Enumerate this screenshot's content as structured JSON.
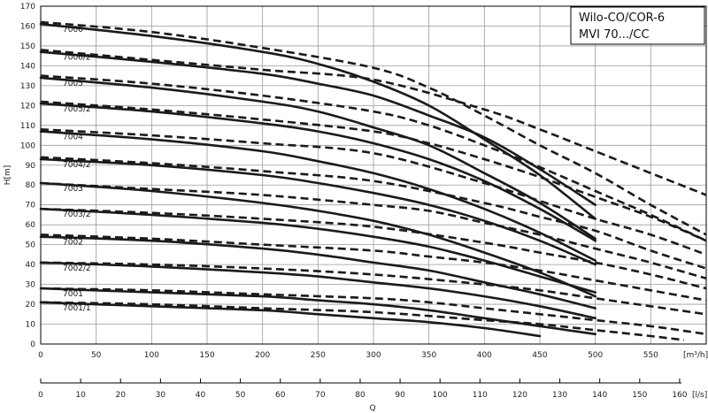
{
  "chart_data": {
    "type": "line",
    "title": [
      "Wilo-CO/COR-6",
      "MVI 70.../CC"
    ],
    "ylabel": "H[m]",
    "xlabel": "Q",
    "x_unit_top": "[m³/h]",
    "x_unit_bottom": "[l/s]",
    "xlim": [
      0,
      600
    ],
    "ylim": [
      0,
      170
    ],
    "x_ticks": [
      0,
      50,
      100,
      150,
      200,
      250,
      300,
      350,
      400,
      450,
      500,
      550
    ],
    "y_ticks": [
      0,
      10,
      20,
      30,
      40,
      50,
      60,
      70,
      80,
      90,
      100,
      110,
      120,
      130,
      140,
      150,
      160,
      170
    ],
    "x2_lim": [
      0,
      166.67
    ],
    "x2_ticks": [
      0,
      10,
      20,
      30,
      40,
      50,
      60,
      70,
      80,
      90,
      100,
      110,
      120,
      130,
      140,
      150,
      160
    ],
    "grid": true,
    "pumps": [
      {
        "label": "7006",
        "solid": [
          [
            0,
            161
          ],
          [
            100,
            155
          ],
          [
            200,
            147
          ],
          [
            250,
            141
          ],
          [
            300,
            132
          ],
          [
            350,
            120
          ],
          [
            400,
            103
          ],
          [
            450,
            85
          ],
          [
            500,
            63
          ]
        ],
        "dashed": [
          [
            0,
            162
          ],
          [
            100,
            157
          ],
          [
            200,
            149
          ],
          [
            300,
            139
          ],
          [
            350,
            129
          ],
          [
            400,
            115
          ],
          [
            450,
            100
          ],
          [
            500,
            86
          ],
          [
            550,
            70
          ],
          [
            600,
            55
          ]
        ]
      },
      {
        "label": "7006/2",
        "solid": [
          [
            0,
            147
          ],
          [
            100,
            142
          ],
          [
            200,
            136
          ],
          [
            250,
            131
          ],
          [
            300,
            125
          ],
          [
            350,
            115
          ],
          [
            400,
            104
          ],
          [
            450,
            88
          ],
          [
            500,
            70
          ]
        ],
        "dashed": [
          [
            0,
            148
          ],
          [
            100,
            143
          ],
          [
            200,
            138
          ],
          [
            300,
            133
          ],
          [
            400,
            118
          ],
          [
            450,
            108
          ],
          [
            500,
            97
          ],
          [
            550,
            86
          ],
          [
            600,
            75
          ]
        ]
      },
      {
        "label": "7005",
        "solid": [
          [
            0,
            134
          ],
          [
            100,
            129
          ],
          [
            200,
            122
          ],
          [
            250,
            117
          ],
          [
            300,
            109
          ],
          [
            350,
            100
          ],
          [
            400,
            86
          ],
          [
            450,
            71
          ],
          [
            500,
            53
          ]
        ],
        "dashed": [
          [
            0,
            135
          ],
          [
            100,
            131
          ],
          [
            200,
            125
          ],
          [
            300,
            117
          ],
          [
            350,
            110
          ],
          [
            400,
            100
          ],
          [
            450,
            89
          ],
          [
            500,
            77
          ],
          [
            550,
            65
          ],
          [
            600,
            52
          ]
        ]
      },
      {
        "label": "7005/2",
        "solid": [
          [
            0,
            121
          ],
          [
            100,
            117
          ],
          [
            200,
            111
          ],
          [
            250,
            107
          ],
          [
            300,
            101
          ],
          [
            350,
            93
          ],
          [
            400,
            82
          ],
          [
            450,
            68
          ],
          [
            500,
            52
          ]
        ],
        "dashed": [
          [
            0,
            122
          ],
          [
            100,
            118
          ],
          [
            200,
            113
          ],
          [
            300,
            107
          ],
          [
            350,
            101
          ],
          [
            400,
            93
          ],
          [
            450,
            84
          ],
          [
            500,
            74
          ],
          [
            550,
            64
          ],
          [
            600,
            52
          ]
        ]
      },
      {
        "label": "7004",
        "solid": [
          [
            0,
            107
          ],
          [
            100,
            103
          ],
          [
            200,
            97
          ],
          [
            250,
            92
          ],
          [
            300,
            86
          ],
          [
            350,
            78
          ],
          [
            400,
            68
          ],
          [
            450,
            56
          ],
          [
            500,
            42
          ]
        ],
        "dashed": [
          [
            0,
            108
          ],
          [
            100,
            105
          ],
          [
            200,
            101
          ],
          [
            300,
            96
          ],
          [
            400,
            81
          ],
          [
            450,
            72
          ],
          [
            500,
            63
          ],
          [
            550,
            55
          ],
          [
            600,
            45
          ]
        ]
      },
      {
        "label": "7004/2",
        "solid": [
          [
            0,
            93
          ],
          [
            100,
            90
          ],
          [
            200,
            85
          ],
          [
            250,
            81
          ],
          [
            300,
            76
          ],
          [
            350,
            70
          ],
          [
            400,
            62
          ],
          [
            450,
            52
          ],
          [
            500,
            40
          ]
        ],
        "dashed": [
          [
            0,
            94
          ],
          [
            100,
            91
          ],
          [
            200,
            87
          ],
          [
            300,
            82
          ],
          [
            400,
            71
          ],
          [
            450,
            64
          ],
          [
            500,
            57
          ],
          [
            550,
            47
          ],
          [
            600,
            38
          ]
        ]
      },
      {
        "label": "7003",
        "solid": [
          [
            0,
            81
          ],
          [
            100,
            77
          ],
          [
            200,
            71
          ],
          [
            250,
            67
          ],
          [
            300,
            62
          ],
          [
            350,
            55
          ],
          [
            400,
            46
          ],
          [
            450,
            36
          ],
          [
            500,
            24
          ]
        ],
        "dashed": [
          [
            0,
            81
          ],
          [
            100,
            78
          ],
          [
            200,
            75
          ],
          [
            300,
            70
          ],
          [
            350,
            67
          ],
          [
            400,
            61
          ],
          [
            450,
            55
          ],
          [
            500,
            48
          ],
          [
            550,
            41
          ],
          [
            600,
            33
          ]
        ]
      },
      {
        "label": "7003/2",
        "solid": [
          [
            0,
            68
          ],
          [
            100,
            65
          ],
          [
            200,
            61
          ],
          [
            250,
            58
          ],
          [
            300,
            54
          ],
          [
            350,
            49
          ],
          [
            400,
            42
          ],
          [
            450,
            34
          ],
          [
            500,
            26
          ]
        ],
        "dashed": [
          [
            0,
            68
          ],
          [
            100,
            66
          ],
          [
            200,
            63
          ],
          [
            300,
            59
          ],
          [
            400,
            51
          ],
          [
            450,
            46
          ],
          [
            500,
            41
          ],
          [
            550,
            35
          ],
          [
            600,
            28
          ]
        ]
      },
      {
        "label": "7002",
        "solid": [
          [
            0,
            54
          ],
          [
            100,
            52
          ],
          [
            200,
            48
          ],
          [
            250,
            45
          ],
          [
            300,
            41
          ],
          [
            350,
            37
          ],
          [
            400,
            31
          ],
          [
            450,
            25
          ],
          [
            500,
            18
          ]
        ],
        "dashed": [
          [
            0,
            55
          ],
          [
            100,
            53
          ],
          [
            200,
            50
          ],
          [
            300,
            47
          ],
          [
            350,
            44
          ],
          [
            400,
            41
          ],
          [
            450,
            37
          ],
          [
            500,
            32
          ],
          [
            550,
            27
          ],
          [
            600,
            22
          ]
        ]
      },
      {
        "label": "7002/2",
        "solid": [
          [
            0,
            41
          ],
          [
            100,
            39
          ],
          [
            200,
            36
          ],
          [
            250,
            34
          ],
          [
            300,
            31
          ],
          [
            350,
            28
          ],
          [
            400,
            24
          ],
          [
            450,
            19
          ],
          [
            500,
            13
          ]
        ],
        "dashed": [
          [
            0,
            41
          ],
          [
            100,
            40
          ],
          [
            200,
            38
          ],
          [
            300,
            35
          ],
          [
            400,
            30
          ],
          [
            450,
            27
          ],
          [
            500,
            23
          ],
          [
            550,
            19
          ],
          [
            600,
            15
          ]
        ]
      },
      {
        "label": "7001",
        "solid": [
          [
            0,
            28
          ],
          [
            100,
            26
          ],
          [
            200,
            24
          ],
          [
            250,
            22
          ],
          [
            300,
            20
          ],
          [
            350,
            17
          ],
          [
            400,
            13
          ],
          [
            450,
            9
          ],
          [
            500,
            5
          ]
        ],
        "dashed": [
          [
            0,
            28
          ],
          [
            100,
            27
          ],
          [
            200,
            25
          ],
          [
            300,
            23
          ],
          [
            350,
            21
          ],
          [
            400,
            18
          ],
          [
            450,
            15
          ],
          [
            500,
            12
          ],
          [
            550,
            9
          ],
          [
            600,
            5
          ]
        ]
      },
      {
        "label": "7001/1",
        "solid": [
          [
            0,
            21
          ],
          [
            100,
            19
          ],
          [
            200,
            17
          ],
          [
            250,
            15
          ],
          [
            300,
            13
          ],
          [
            350,
            11
          ],
          [
            400,
            8
          ],
          [
            450,
            4
          ]
        ],
        "dashed": [
          [
            0,
            21
          ],
          [
            100,
            20
          ],
          [
            200,
            18
          ],
          [
            300,
            16
          ],
          [
            400,
            12
          ],
          [
            450,
            10
          ],
          [
            500,
            7
          ],
          [
            550,
            4
          ],
          [
            580,
            2
          ]
        ]
      }
    ]
  }
}
